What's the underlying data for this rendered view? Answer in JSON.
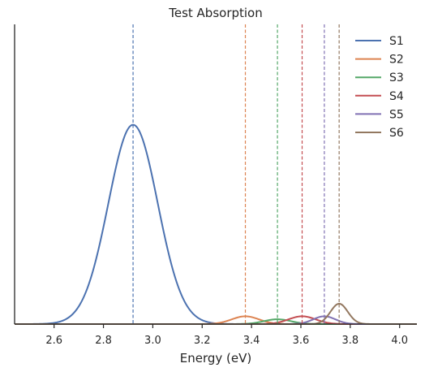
{
  "chart_data": {
    "type": "line",
    "title": "Test Absorption",
    "xlabel": "Energy (eV)",
    "ylabel": "",
    "xlim": [
      2.44,
      4.07
    ],
    "ylim": [
      0,
      1.0
    ],
    "xticks": [
      2.6,
      2.8,
      3.0,
      3.2,
      3.4,
      3.6,
      3.8,
      4.0
    ],
    "xtick_labels": [
      "2.6",
      "2.8",
      "3.0",
      "3.2",
      "3.4",
      "3.6",
      "3.8",
      "4.0"
    ],
    "grid": false,
    "legend_position": "top-right",
    "series": [
      {
        "name": "S1",
        "color": "#4c72b0",
        "center": 2.92,
        "height": 0.665,
        "width": 0.1
      },
      {
        "name": "S2",
        "color": "#dd8452",
        "center": 3.375,
        "height": 0.026,
        "width": 0.055
      },
      {
        "name": "S3",
        "color": "#55a868",
        "center": 3.505,
        "height": 0.016,
        "width": 0.055
      },
      {
        "name": "S4",
        "color": "#c44e52",
        "center": 3.605,
        "height": 0.026,
        "width": 0.055
      },
      {
        "name": "S5",
        "color": "#8172b3",
        "center": 3.695,
        "height": 0.026,
        "width": 0.045
      },
      {
        "name": "S6",
        "color": "#937860",
        "center": 3.755,
        "height": 0.068,
        "width": 0.035
      }
    ]
  }
}
